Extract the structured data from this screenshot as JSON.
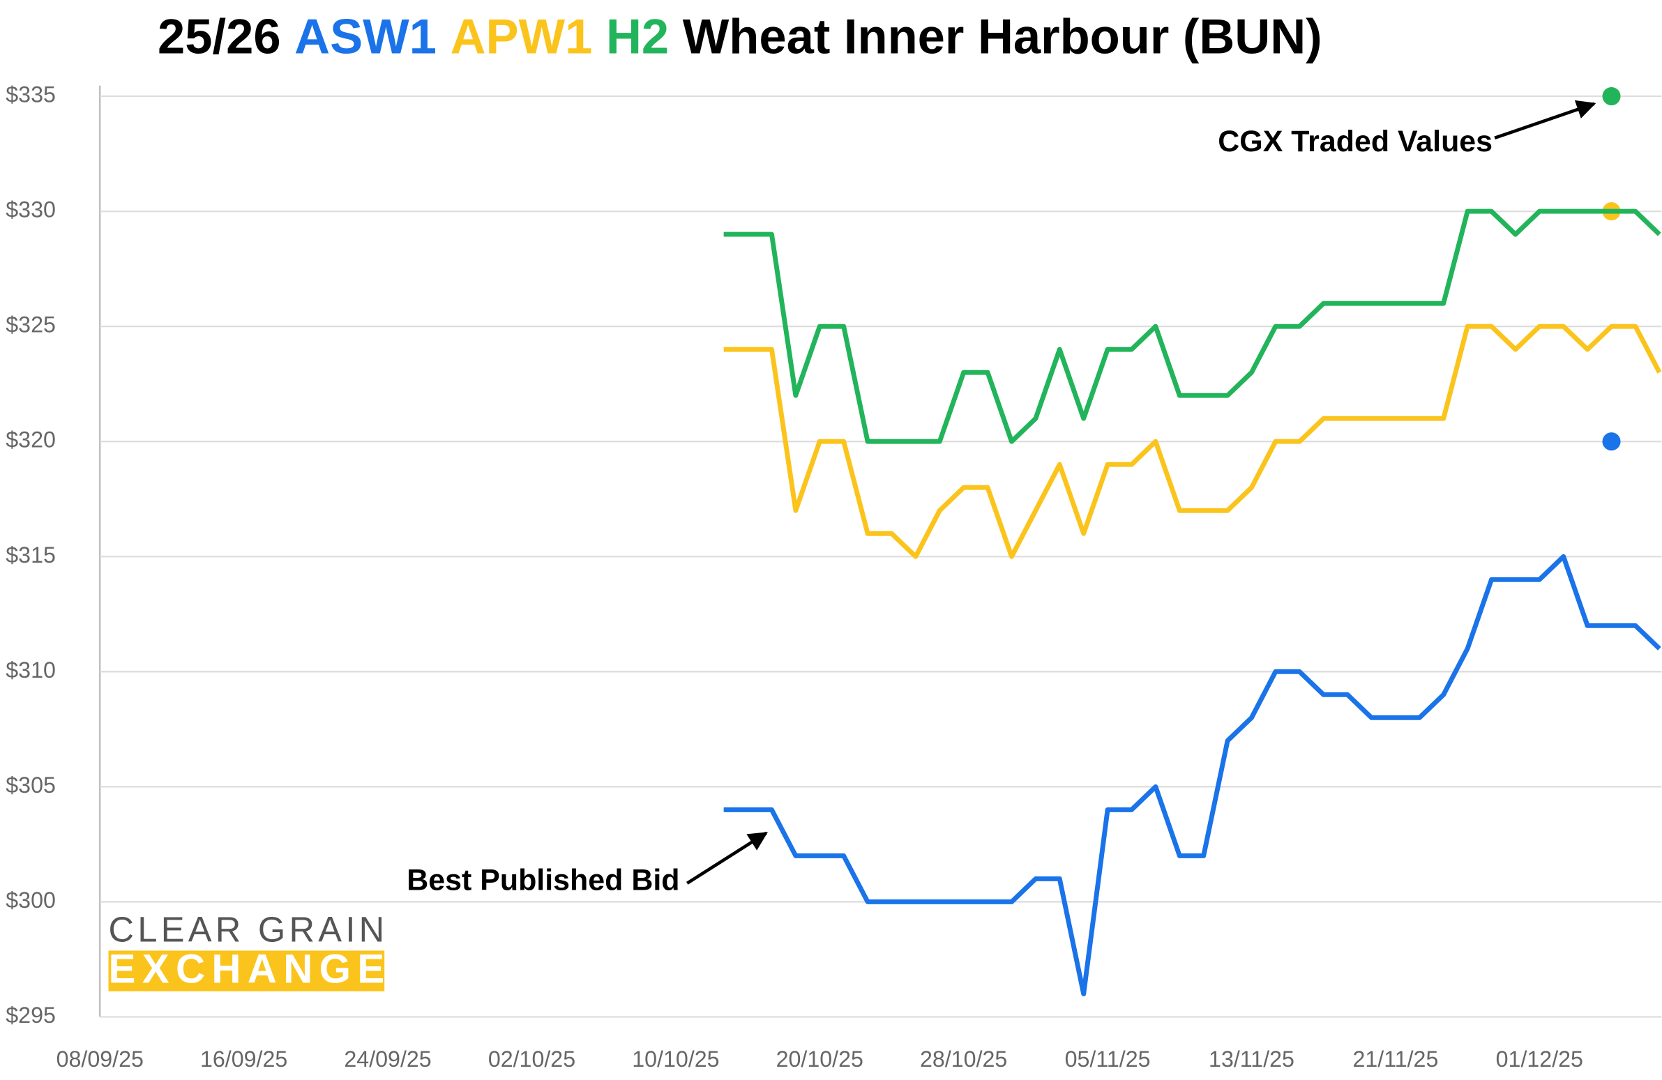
{
  "chart_data": {
    "type": "line",
    "title_parts": [
      "25/26",
      "Wheat Inner Harbour (BUN)"
    ],
    "categories": [
      "08/09/25",
      null,
      null,
      null,
      null,
      null,
      "16/09/25",
      null,
      null,
      null,
      null,
      null,
      "24/09/25",
      null,
      null,
      null,
      null,
      null,
      "02/10/25",
      null,
      null,
      null,
      null,
      null,
      "10/10/25",
      null,
      null,
      null,
      null,
      null,
      "20/10/25",
      null,
      null,
      null,
      null,
      null,
      "28/10/25",
      null,
      null,
      null,
      null,
      null,
      "05/11/25",
      null,
      null,
      null,
      null,
      null,
      "13/11/25",
      null,
      null,
      null,
      null,
      null,
      "21/11/25",
      null,
      null,
      null,
      null,
      null,
      "01/12/25",
      null,
      null,
      null,
      null,
      null
    ],
    "series": [
      {
        "name": "ASW1",
        "color": "#1a73e8",
        "values": [
          null,
          null,
          null,
          null,
          null,
          null,
          null,
          null,
          null,
          null,
          null,
          null,
          null,
          null,
          null,
          null,
          null,
          null,
          null,
          null,
          null,
          null,
          null,
          null,
          null,
          null,
          304,
          304,
          304,
          302,
          302,
          302,
          300,
          300,
          300,
          300,
          300,
          300,
          300,
          301,
          301,
          296,
          304,
          304,
          305,
          302,
          302,
          307,
          308,
          310,
          310,
          309,
          309,
          308,
          308,
          308,
          309,
          311,
          314,
          314,
          314,
          315,
          312,
          312,
          312,
          311
        ],
        "traded": [
          null,
          null,
          null,
          null,
          null,
          null,
          null,
          null,
          null,
          null,
          null,
          null,
          null,
          null,
          null,
          null,
          null,
          null,
          null,
          null,
          null,
          null,
          null,
          null,
          null,
          null,
          null,
          null,
          null,
          null,
          null,
          null,
          null,
          null,
          null,
          null,
          null,
          null,
          null,
          null,
          null,
          null,
          null,
          null,
          null,
          null,
          null,
          null,
          null,
          null,
          null,
          null,
          null,
          null,
          null,
          null,
          null,
          null,
          null,
          null,
          null,
          null,
          null,
          320,
          null,
          null
        ]
      },
      {
        "name": "APW1",
        "color": "#fbc41c",
        "values": [
          null,
          null,
          null,
          null,
          null,
          null,
          null,
          null,
          null,
          null,
          null,
          null,
          null,
          null,
          null,
          null,
          null,
          null,
          null,
          null,
          null,
          null,
          null,
          null,
          null,
          null,
          324,
          324,
          324,
          317,
          320,
          320,
          316,
          316,
          315,
          317,
          318,
          318,
          315,
          317,
          319,
          316,
          319,
          319,
          320,
          317,
          317,
          317,
          318,
          320,
          320,
          321,
          321,
          321,
          321,
          321,
          321,
          325,
          325,
          324,
          325,
          325,
          324,
          325,
          325,
          323
        ],
        "traded": [
          null,
          null,
          null,
          null,
          null,
          null,
          null,
          null,
          null,
          null,
          null,
          null,
          null,
          null,
          null,
          null,
          null,
          null,
          null,
          null,
          null,
          null,
          null,
          null,
          null,
          null,
          null,
          null,
          null,
          null,
          null,
          null,
          null,
          null,
          null,
          null,
          null,
          null,
          null,
          null,
          null,
          null,
          null,
          null,
          null,
          null,
          null,
          null,
          null,
          null,
          null,
          null,
          null,
          null,
          null,
          null,
          null,
          null,
          null,
          null,
          null,
          null,
          null,
          330,
          null,
          null
        ]
      },
      {
        "name": "H2",
        "color": "#22b45a",
        "values": [
          null,
          null,
          null,
          null,
          null,
          null,
          null,
          null,
          null,
          null,
          null,
          null,
          null,
          null,
          null,
          null,
          null,
          null,
          null,
          null,
          null,
          null,
          null,
          null,
          null,
          null,
          329,
          329,
          329,
          322,
          325,
          325,
          320,
          320,
          320,
          320,
          323,
          323,
          320,
          321,
          324,
          321,
          324,
          324,
          325,
          322,
          322,
          322,
          323,
          325,
          325,
          326,
          326,
          326,
          326,
          326,
          326,
          330,
          330,
          329,
          330,
          330,
          330,
          330,
          330,
          329
        ],
        "traded": [
          null,
          null,
          null,
          null,
          null,
          null,
          null,
          null,
          null,
          null,
          null,
          null,
          null,
          null,
          null,
          null,
          null,
          null,
          null,
          null,
          null,
          null,
          null,
          null,
          null,
          null,
          null,
          null,
          null,
          null,
          null,
          null,
          null,
          null,
          null,
          null,
          null,
          null,
          null,
          null,
          null,
          null,
          null,
          null,
          null,
          null,
          null,
          null,
          null,
          null,
          null,
          null,
          null,
          null,
          null,
          null,
          null,
          null,
          null,
          null,
          null,
          null,
          null,
          335,
          null,
          null
        ]
      }
    ],
    "ylim": [
      295,
      335
    ],
    "yticks": [
      {
        "value": 295,
        "label": "$295"
      },
      {
        "value": 300,
        "label": "$300"
      },
      {
        "value": 305,
        "label": "$305"
      },
      {
        "value": 310,
        "label": "$310"
      },
      {
        "value": 315,
        "label": "$315"
      },
      {
        "value": 320,
        "label": "$320"
      },
      {
        "value": 325,
        "label": "$325"
      },
      {
        "value": 330,
        "label": "$330"
      },
      {
        "value": 335,
        "label": "$335"
      }
    ],
    "grid": true,
    "annotations": [
      "CGX Traded Values",
      "Best Published Bid"
    ],
    "logo": [
      "CLEAR GRAIN",
      "EXCHANGE"
    ]
  }
}
